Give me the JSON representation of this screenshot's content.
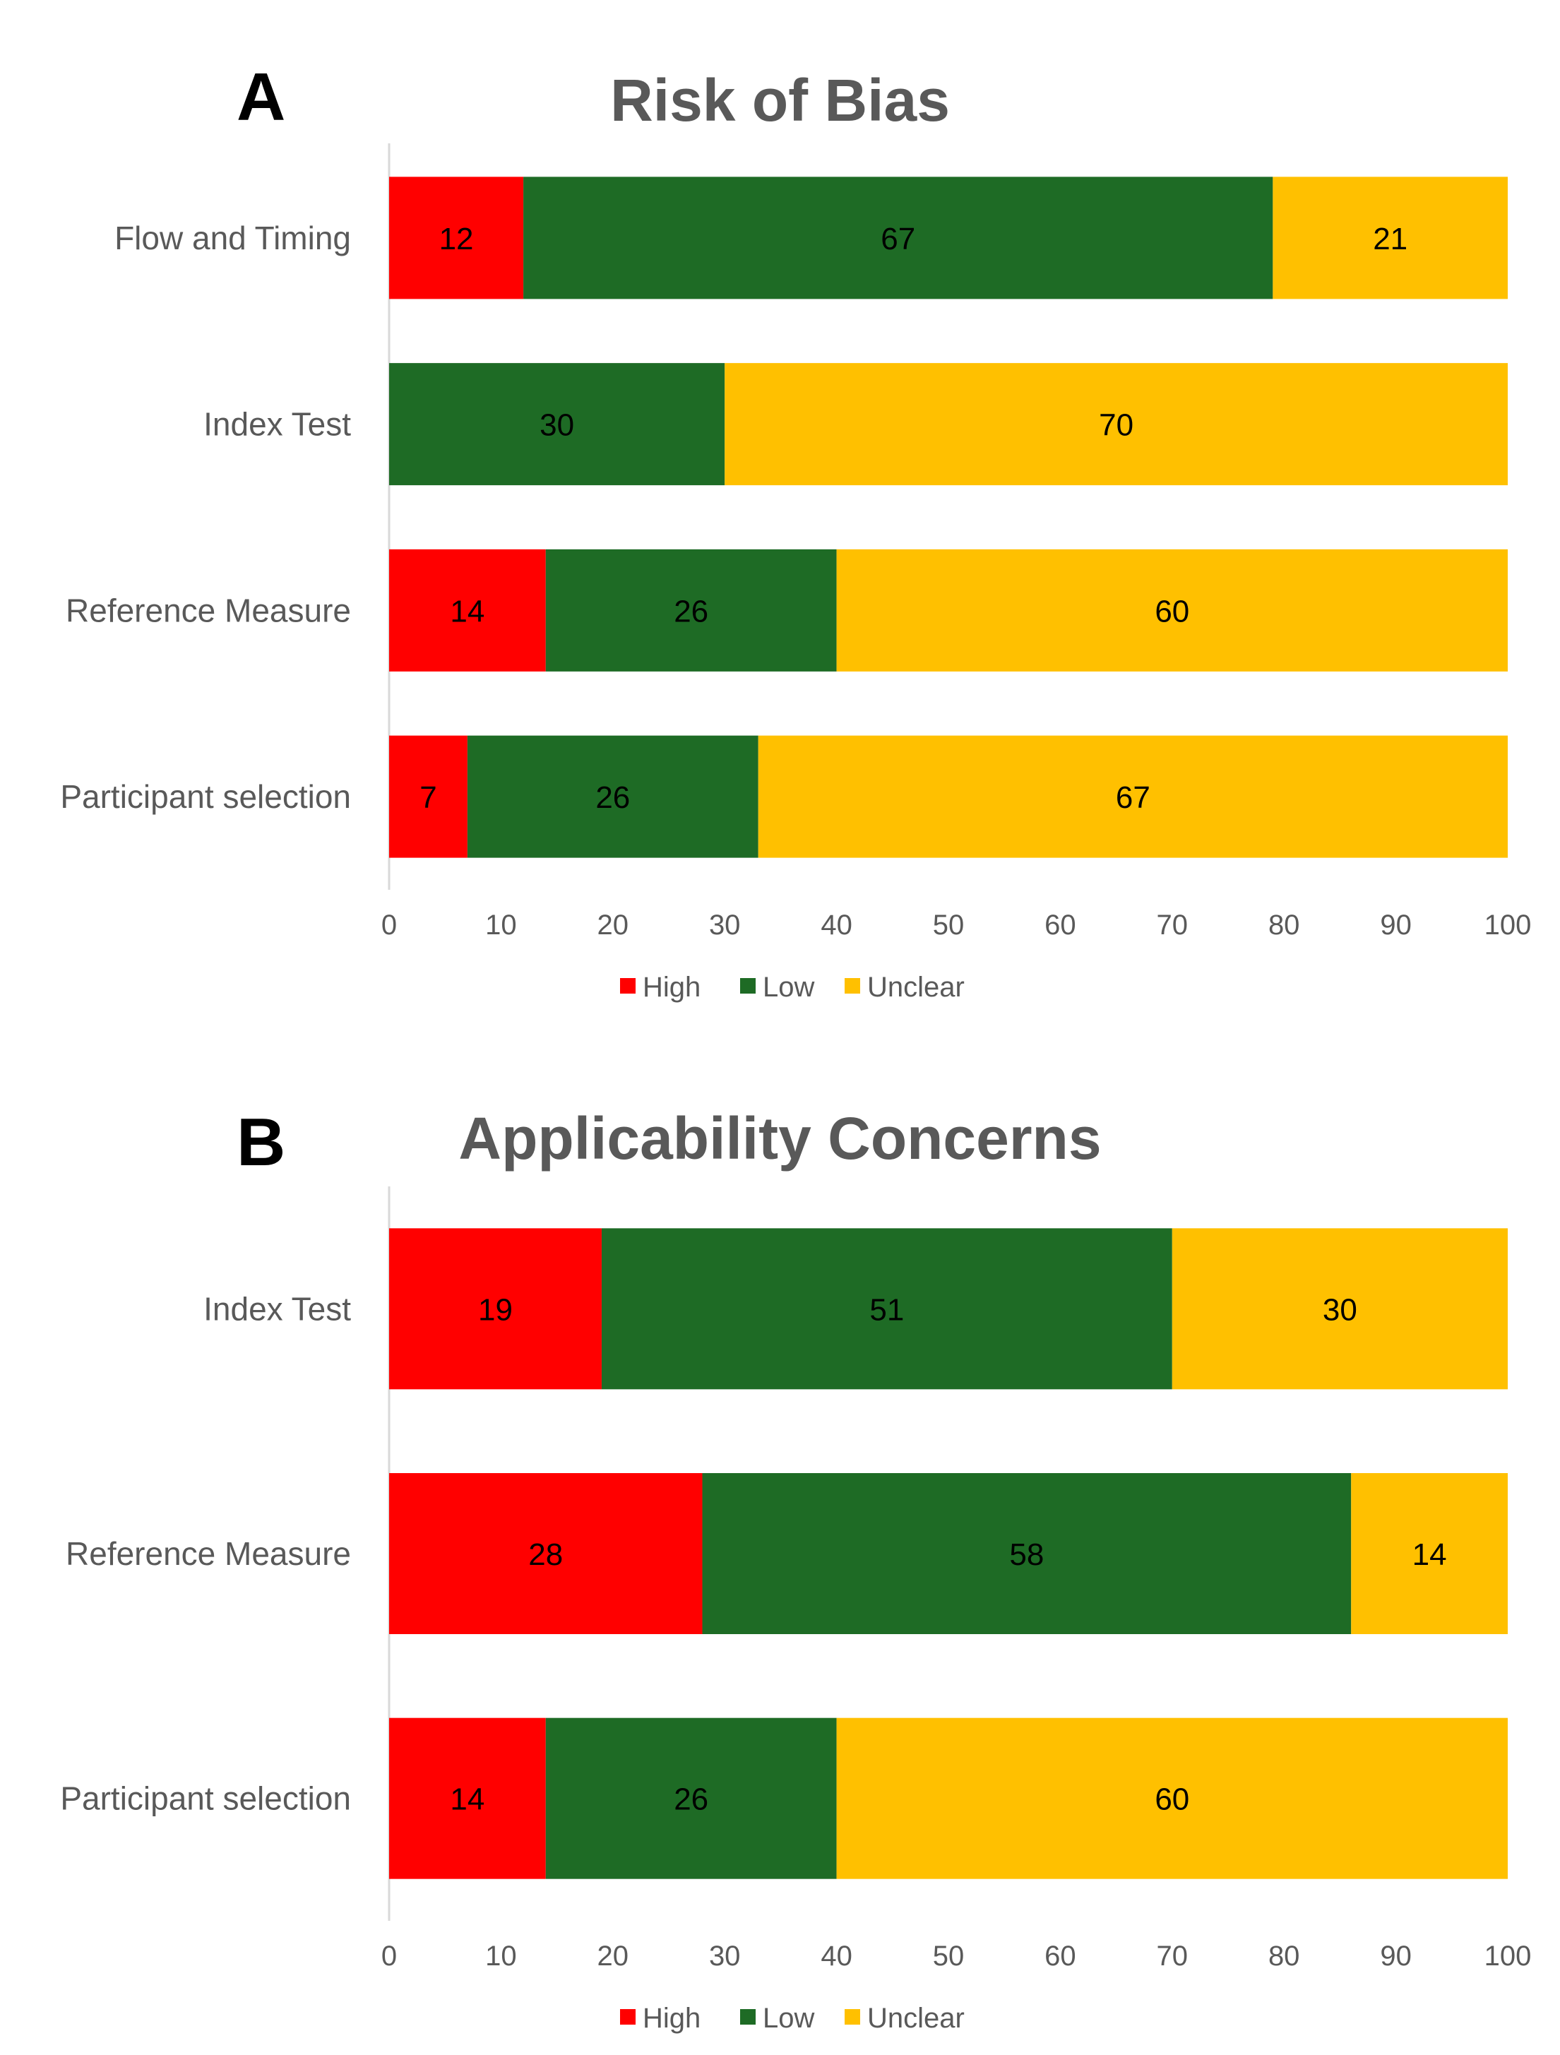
{
  "chart_data": [
    {
      "type": "bar",
      "orientation": "horizontal",
      "stacked": true,
      "panel_label": "A",
      "title": "Risk of Bias",
      "categories": [
        "Flow and Timing",
        "Index Test",
        "Reference Measure",
        "Participant  selection"
      ],
      "series": [
        {
          "name": "High",
          "color": "#FF0000",
          "values": [
            12,
            0,
            14,
            7
          ]
        },
        {
          "name": "Low",
          "color": "#1E6B25",
          "values": [
            67,
            30,
            26,
            26
          ]
        },
        {
          "name": "Unclear",
          "color": "#FFC000",
          "values": [
            21,
            70,
            60,
            67
          ]
        }
      ],
      "xlim": [
        0,
        100
      ],
      "xticks": [
        "0",
        "10",
        "20",
        "30",
        "40",
        "50",
        "60",
        "70",
        "80",
        "90",
        "100"
      ],
      "grid": false,
      "legend": "bottom",
      "xlabel": "",
      "ylabel": ""
    },
    {
      "type": "bar",
      "orientation": "horizontal",
      "stacked": true,
      "panel_label": "B",
      "title": "Applicability Concerns",
      "categories": [
        "Index Test",
        "Reference Measure",
        "Participant  selection"
      ],
      "series": [
        {
          "name": "High",
          "color": "#FF0000",
          "values": [
            19,
            28,
            14
          ]
        },
        {
          "name": "Low",
          "color": "#1E6B25",
          "values": [
            51,
            58,
            26
          ]
        },
        {
          "name": "Unclear",
          "color": "#FFC000",
          "values": [
            30,
            14,
            60
          ]
        }
      ],
      "xlim": [
        0,
        100
      ],
      "xticks": [
        "0",
        "10",
        "20",
        "30",
        "40",
        "50",
        "60",
        "70",
        "80",
        "90",
        "100"
      ],
      "grid": false,
      "legend": "bottom",
      "xlabel": "",
      "ylabel": ""
    }
  ]
}
